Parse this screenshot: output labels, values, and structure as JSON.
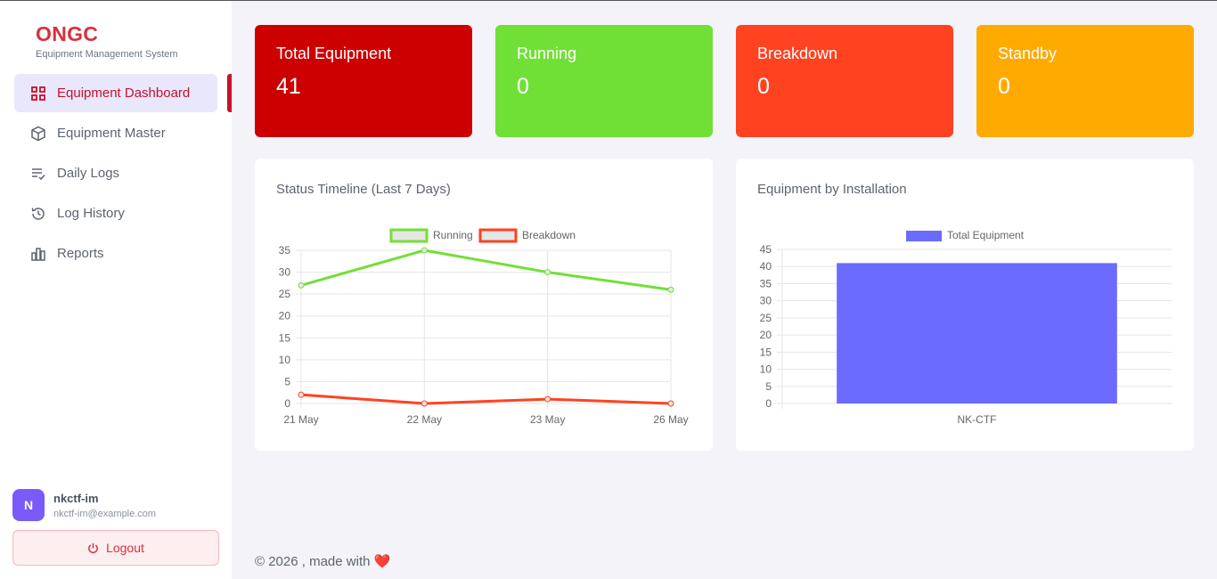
{
  "brand": {
    "name": "ONGC",
    "subtitle": "Equipment Management System"
  },
  "nav": [
    {
      "label": "Equipment Dashboard",
      "icon": "grid-icon",
      "active": true
    },
    {
      "label": "Equipment Master",
      "icon": "cube-icon",
      "active": false
    },
    {
      "label": "Daily Logs",
      "icon": "list-check-icon",
      "active": false
    },
    {
      "label": "Log History",
      "icon": "history-icon",
      "active": false
    },
    {
      "label": "Reports",
      "icon": "bar-chart-icon",
      "active": false
    }
  ],
  "user": {
    "initial": "N",
    "name": "nkctf-im",
    "email": "nkctf-im@example.com"
  },
  "logout_label": "Logout",
  "stats": [
    {
      "label": "Total Equipment",
      "value": "41",
      "color": "#cc0000"
    },
    {
      "label": "Running",
      "value": "0",
      "color": "#71e036"
    },
    {
      "label": "Breakdown",
      "value": "0",
      "color": "#ff4220"
    },
    {
      "label": "Standby",
      "value": "0",
      "color": "#ffaa00"
    }
  ],
  "panels": {
    "timeline_title": "Status Timeline (Last 7 Days)",
    "installation_title": "Equipment by Installation"
  },
  "chart_data": [
    {
      "type": "line",
      "title": "Status Timeline (Last 7 Days)",
      "categories": [
        "21 May",
        "22 May",
        "23 May",
        "26 May"
      ],
      "series": [
        {
          "name": "Running",
          "values": [
            27,
            35,
            30,
            26
          ],
          "color": "#71e036"
        },
        {
          "name": "Breakdown",
          "values": [
            2,
            0,
            1,
            0
          ],
          "color": "#ff4220"
        }
      ],
      "ylim": [
        0,
        35
      ],
      "yticks": [
        0,
        5,
        10,
        15,
        20,
        25,
        30,
        35
      ],
      "grid": true,
      "legend": "top-center"
    },
    {
      "type": "bar",
      "title": "Equipment by Installation",
      "categories": [
        "NK-CTF"
      ],
      "series": [
        {
          "name": "Total Equipment",
          "values": [
            41
          ],
          "color": "#6b6bff"
        }
      ],
      "ylim": [
        0,
        45
      ],
      "yticks": [
        0,
        5,
        10,
        15,
        20,
        25,
        30,
        35,
        40,
        45
      ],
      "grid": true,
      "legend": "top-center"
    }
  ],
  "footer": {
    "text": "© 2026 , made with",
    "heart": "❤️"
  }
}
